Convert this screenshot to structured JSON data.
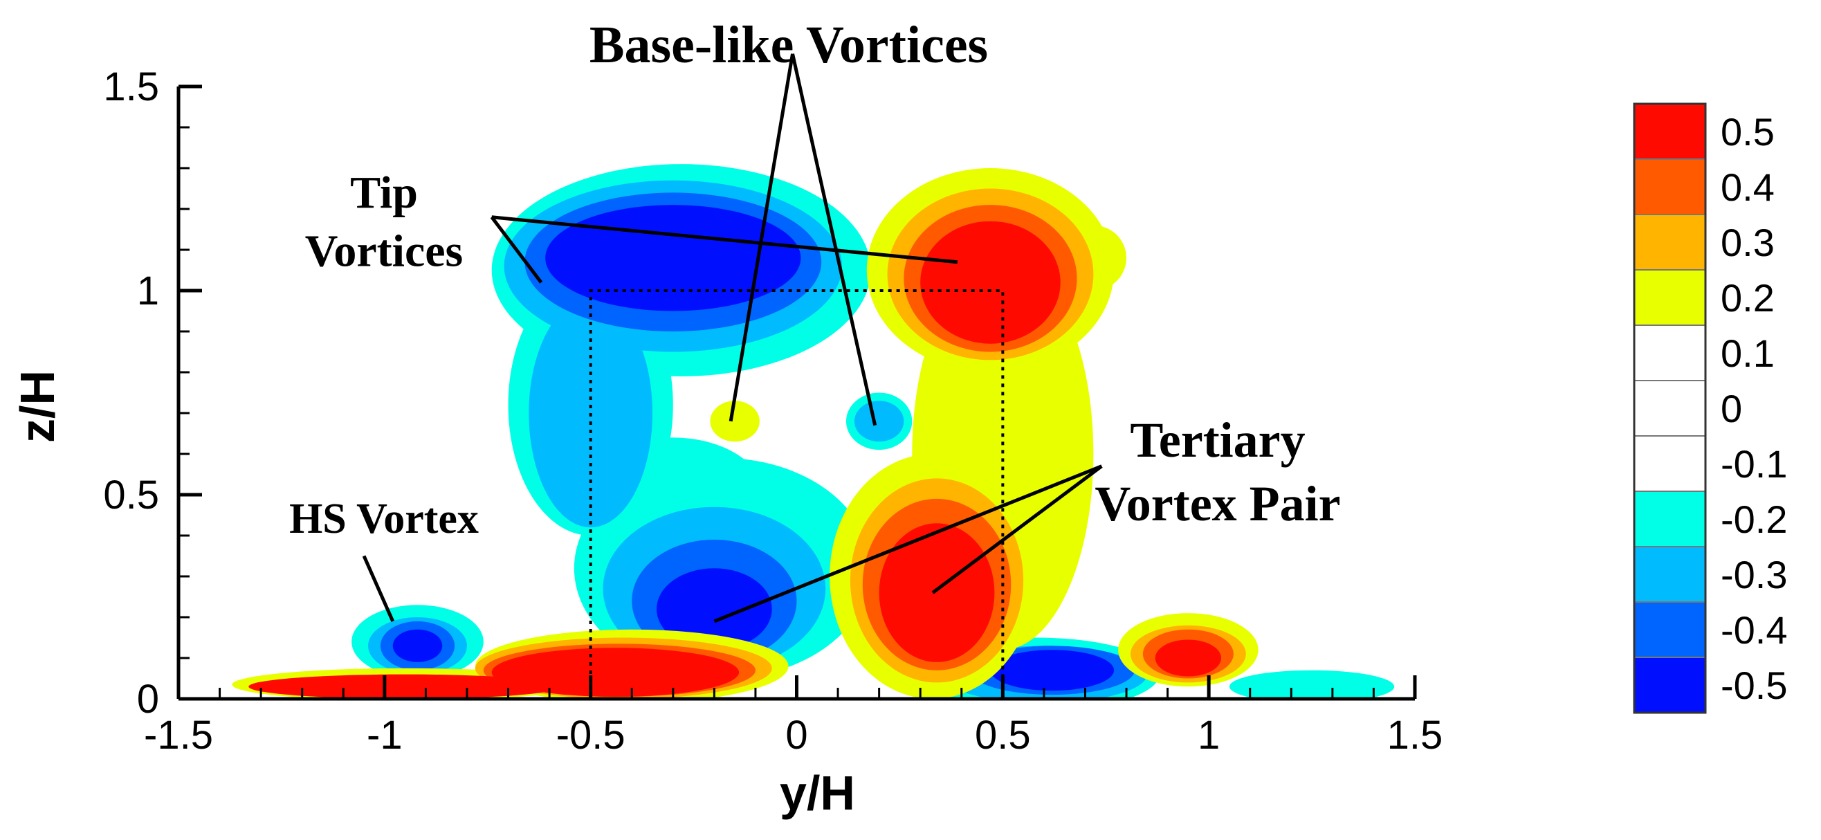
{
  "chart_data": {
    "type": "heatmap",
    "title": "",
    "xlabel": "y/H",
    "ylabel": "z/H",
    "xlim": [
      -1.5,
      1.5
    ],
    "ylim": [
      0,
      1.5
    ],
    "x_ticks": [
      "-1.5",
      "-1",
      "-0.5",
      "0",
      "0.5",
      "1",
      "1.5"
    ],
    "y_ticks": [
      "0",
      "0.5",
      "1",
      "1.5"
    ],
    "x_tick_values": [
      -1.5,
      -1,
      -0.5,
      0,
      0.5,
      1,
      1.5
    ],
    "y_tick_values": [
      0,
      0.5,
      1,
      1.5
    ],
    "grid": false,
    "legend_position": "right",
    "colorbar": {
      "levels": [
        "0.5",
        "0.4",
        "0.3",
        "0.2",
        "0.1",
        "0",
        "-0.1",
        "-0.2",
        "-0.3",
        "-0.4",
        "-0.5"
      ],
      "colors": [
        "#ff0a00",
        "#ff5a00",
        "#ffb400",
        "#e8ff00",
        "#ffffff",
        "#ffffff",
        "#ffffff",
        "#00ffe6",
        "#00bcff",
        "#0064ff",
        "#0010ff"
      ]
    },
    "colors": {
      "pos1": "#e8ff00",
      "pos2": "#ffb400",
      "pos3": "#ff5a00",
      "pos4": "#ff0a00",
      "neg1": "#00ffe6",
      "neg2": "#00bcff",
      "neg3": "#0064ff",
      "neg4": "#0010ff"
    },
    "obstacle": {
      "y": [
        -0.5,
        0.5
      ],
      "z": [
        0,
        1
      ]
    },
    "regions": [
      {
        "level": 1,
        "sign": "neg",
        "cx": -0.28,
        "cz": 1.05,
        "rx": 0.46,
        "rz": 0.26
      },
      {
        "level": 1,
        "sign": "neg",
        "cx": -0.5,
        "cz": 0.72,
        "rx": 0.2,
        "rz": 0.32
      },
      {
        "level": 1,
        "sign": "neg",
        "cx": -0.18,
        "cz": 0.32,
        "rx": 0.36,
        "rz": 0.27
      },
      {
        "level": 1,
        "sign": "neg",
        "cx": -0.3,
        "cz": 0.5,
        "rx": 0.22,
        "rz": 0.14
      },
      {
        "level": 1,
        "sign": "neg",
        "cx": -0.92,
        "cz": 0.14,
        "rx": 0.16,
        "rz": 0.09
      },
      {
        "level": 1,
        "sign": "neg",
        "cx": 0.58,
        "cz": 0.06,
        "rx": 0.3,
        "rz": 0.09
      },
      {
        "level": 1,
        "sign": "neg",
        "cx": 1.25,
        "cz": 0.03,
        "rx": 0.2,
        "rz": 0.04
      },
      {
        "level": 1,
        "sign": "neg",
        "cx": 0.2,
        "cz": 0.68,
        "rx": 0.08,
        "rz": 0.07
      },
      {
        "level": 2,
        "sign": "neg",
        "cx": -0.3,
        "cz": 1.06,
        "rx": 0.41,
        "rz": 0.21
      },
      {
        "level": 2,
        "sign": "neg",
        "cx": -0.5,
        "cz": 0.7,
        "rx": 0.15,
        "rz": 0.28
      },
      {
        "level": 2,
        "sign": "neg",
        "cx": -0.2,
        "cz": 0.27,
        "rx": 0.27,
        "rz": 0.2
      },
      {
        "level": 2,
        "sign": "neg",
        "cx": -0.92,
        "cz": 0.13,
        "rx": 0.12,
        "rz": 0.07
      },
      {
        "level": 2,
        "sign": "neg",
        "cx": 0.6,
        "cz": 0.06,
        "rx": 0.25,
        "rz": 0.07
      },
      {
        "level": 2,
        "sign": "neg",
        "cx": 0.2,
        "cz": 0.68,
        "rx": 0.06,
        "rz": 0.05
      },
      {
        "level": 3,
        "sign": "neg",
        "cx": -0.3,
        "cz": 1.07,
        "rx": 0.36,
        "rz": 0.17
      },
      {
        "level": 3,
        "sign": "neg",
        "cx": -0.2,
        "cz": 0.24,
        "rx": 0.2,
        "rz": 0.15
      },
      {
        "level": 3,
        "sign": "neg",
        "cx": -0.92,
        "cz": 0.13,
        "rx": 0.09,
        "rz": 0.06
      },
      {
        "level": 3,
        "sign": "neg",
        "cx": 0.62,
        "cz": 0.07,
        "rx": 0.2,
        "rz": 0.06
      },
      {
        "level": 4,
        "sign": "neg",
        "cx": -0.3,
        "cz": 1.08,
        "rx": 0.31,
        "rz": 0.13
      },
      {
        "level": 4,
        "sign": "neg",
        "cx": -0.2,
        "cz": 0.22,
        "rx": 0.14,
        "rz": 0.1
      },
      {
        "level": 4,
        "sign": "neg",
        "cx": -0.92,
        "cz": 0.13,
        "rx": 0.06,
        "rz": 0.04
      },
      {
        "level": 4,
        "sign": "neg",
        "cx": 0.62,
        "cz": 0.07,
        "rx": 0.15,
        "rz": 0.05
      },
      {
        "level": 1,
        "sign": "pos",
        "cx": 0.47,
        "cz": 1.05,
        "rx": 0.3,
        "rz": 0.25
      },
      {
        "level": 1,
        "sign": "pos",
        "cx": 0.72,
        "cz": 1.08,
        "rx": 0.08,
        "rz": 0.08
      },
      {
        "level": 1,
        "sign": "pos",
        "cx": 0.5,
        "cz": 0.6,
        "rx": 0.22,
        "rz": 0.48
      },
      {
        "level": 1,
        "sign": "pos",
        "cx": 0.33,
        "cz": 0.3,
        "rx": 0.25,
        "rz": 0.3
      },
      {
        "level": 1,
        "sign": "pos",
        "cx": -0.4,
        "cz": 0.08,
        "rx": 0.38,
        "rz": 0.09
      },
      {
        "level": 1,
        "sign": "pos",
        "cx": -0.95,
        "cz": 0.035,
        "rx": 0.42,
        "rz": 0.04
      },
      {
        "level": 1,
        "sign": "pos",
        "cx": 0.95,
        "cz": 0.12,
        "rx": 0.17,
        "rz": 0.09
      },
      {
        "level": 1,
        "sign": "pos",
        "cx": -0.15,
        "cz": 0.68,
        "rx": 0.06,
        "rz": 0.05
      },
      {
        "level": 2,
        "sign": "pos",
        "cx": 0.47,
        "cz": 1.04,
        "rx": 0.25,
        "rz": 0.21
      },
      {
        "level": 2,
        "sign": "pos",
        "cx": 0.34,
        "cz": 0.29,
        "rx": 0.21,
        "rz": 0.25
      },
      {
        "level": 2,
        "sign": "pos",
        "cx": -0.42,
        "cz": 0.075,
        "rx": 0.36,
        "rz": 0.075
      },
      {
        "level": 2,
        "sign": "pos",
        "cx": 0.95,
        "cz": 0.11,
        "rx": 0.14,
        "rz": 0.07
      },
      {
        "level": 3,
        "sign": "pos",
        "cx": 0.47,
        "cz": 1.03,
        "rx": 0.21,
        "rz": 0.18
      },
      {
        "level": 3,
        "sign": "pos",
        "cx": 0.34,
        "cz": 0.28,
        "rx": 0.18,
        "rz": 0.21
      },
      {
        "level": 3,
        "sign": "pos",
        "cx": -0.43,
        "cz": 0.07,
        "rx": 0.33,
        "rz": 0.065
      },
      {
        "level": 3,
        "sign": "pos",
        "cx": 0.95,
        "cz": 0.11,
        "rx": 0.11,
        "rz": 0.06
      },
      {
        "level": 4,
        "sign": "pos",
        "cx": 0.47,
        "cz": 1.02,
        "rx": 0.17,
        "rz": 0.15
      },
      {
        "level": 4,
        "sign": "pos",
        "cx": 0.34,
        "cz": 0.26,
        "rx": 0.14,
        "rz": 0.17
      },
      {
        "level": 4,
        "sign": "pos",
        "cx": -0.44,
        "cz": 0.065,
        "rx": 0.3,
        "rz": 0.06
      },
      {
        "level": 4,
        "sign": "pos",
        "cx": -0.95,
        "cz": 0.03,
        "rx": 0.38,
        "rz": 0.03
      },
      {
        "level": 4,
        "sign": "pos",
        "cx": 0.95,
        "cz": 0.1,
        "rx": 0.08,
        "rz": 0.045
      }
    ],
    "annotations": [
      {
        "id": "base-like",
        "lines": [
          "Base-like Vortices"
        ],
        "ax": -0.01,
        "az": 1.58,
        "targets": [
          {
            "x": -0.16,
            "z": 0.68
          },
          {
            "x": 0.19,
            "z": 0.67
          }
        ]
      },
      {
        "id": "tip",
        "lines": [
          "Tip",
          "Vortices"
        ],
        "ax": -0.74,
        "az": 1.18,
        "targets": [
          {
            "x": -0.62,
            "z": 1.02
          },
          {
            "x": 0.39,
            "z": 1.07
          }
        ]
      },
      {
        "id": "tertiary",
        "lines": [
          "Tertiary",
          "Vortex Pair"
        ],
        "ax": 0.74,
        "az": 0.57,
        "targets": [
          {
            "x": -0.2,
            "z": 0.19
          },
          {
            "x": 0.33,
            "z": 0.26
          }
        ]
      },
      {
        "id": "hs",
        "lines": [
          "HS Vortex"
        ],
        "ax": -1.05,
        "az": 0.35,
        "targets": [
          {
            "x": -0.98,
            "z": 0.19
          }
        ]
      }
    ]
  }
}
